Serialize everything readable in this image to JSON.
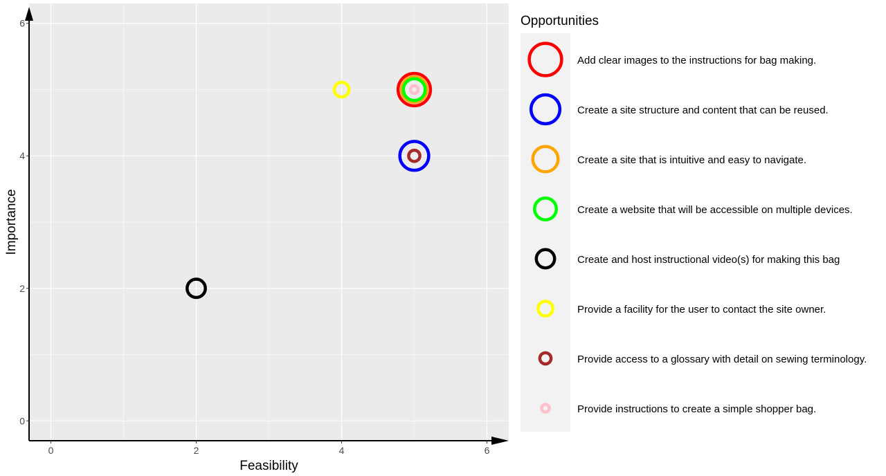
{
  "chart_data": {
    "type": "scatter",
    "xlabel": "Feasibility",
    "ylabel": "Importance",
    "xlim": [
      -0.3,
      6.3
    ],
    "ylim": [
      -0.3,
      6.3
    ],
    "x_ticks": [
      "0",
      "2",
      "4",
      "6"
    ],
    "y_ticks": [
      "0",
      "2",
      "4",
      "6"
    ],
    "grid": true,
    "legend_title": "Opportunities",
    "legend_position": "right",
    "series": [
      {
        "name": "Add clear images to the instructions for bag making.",
        "x": 5,
        "y": 5,
        "color": "#ff0000",
        "size": 8
      },
      {
        "name": "Create a site structure and content that can be reused.",
        "x": 5,
        "y": 4,
        "color": "#0000ff",
        "size": 7
      },
      {
        "name": "Create a site that is intuitive and easy to navigate.",
        "x": 5,
        "y": 5,
        "color": "#ffa500",
        "size": 6
      },
      {
        "name": "Create a website that will be accessible on multiple devices.",
        "x": 5,
        "y": 5,
        "color": "#00ff00",
        "size": 5
      },
      {
        "name": "Create and host instructional video(s) for making this bag",
        "x": 2,
        "y": 2,
        "color": "#000000",
        "size": 4
      },
      {
        "name": "Provide a facility for the user to contact the site owner.",
        "x": 4,
        "y": 5,
        "color": "#ffff00",
        "size": 3
      },
      {
        "name": "Provide access to a glossary with detail on sewing terminology.",
        "x": 5,
        "y": 4,
        "color": "#a52a2a",
        "size": 2
      },
      {
        "name": "Provide instructions to create a simple shopper bag.",
        "x": 5,
        "y": 5,
        "color": "#ffc0cb",
        "size": 1
      }
    ]
  }
}
